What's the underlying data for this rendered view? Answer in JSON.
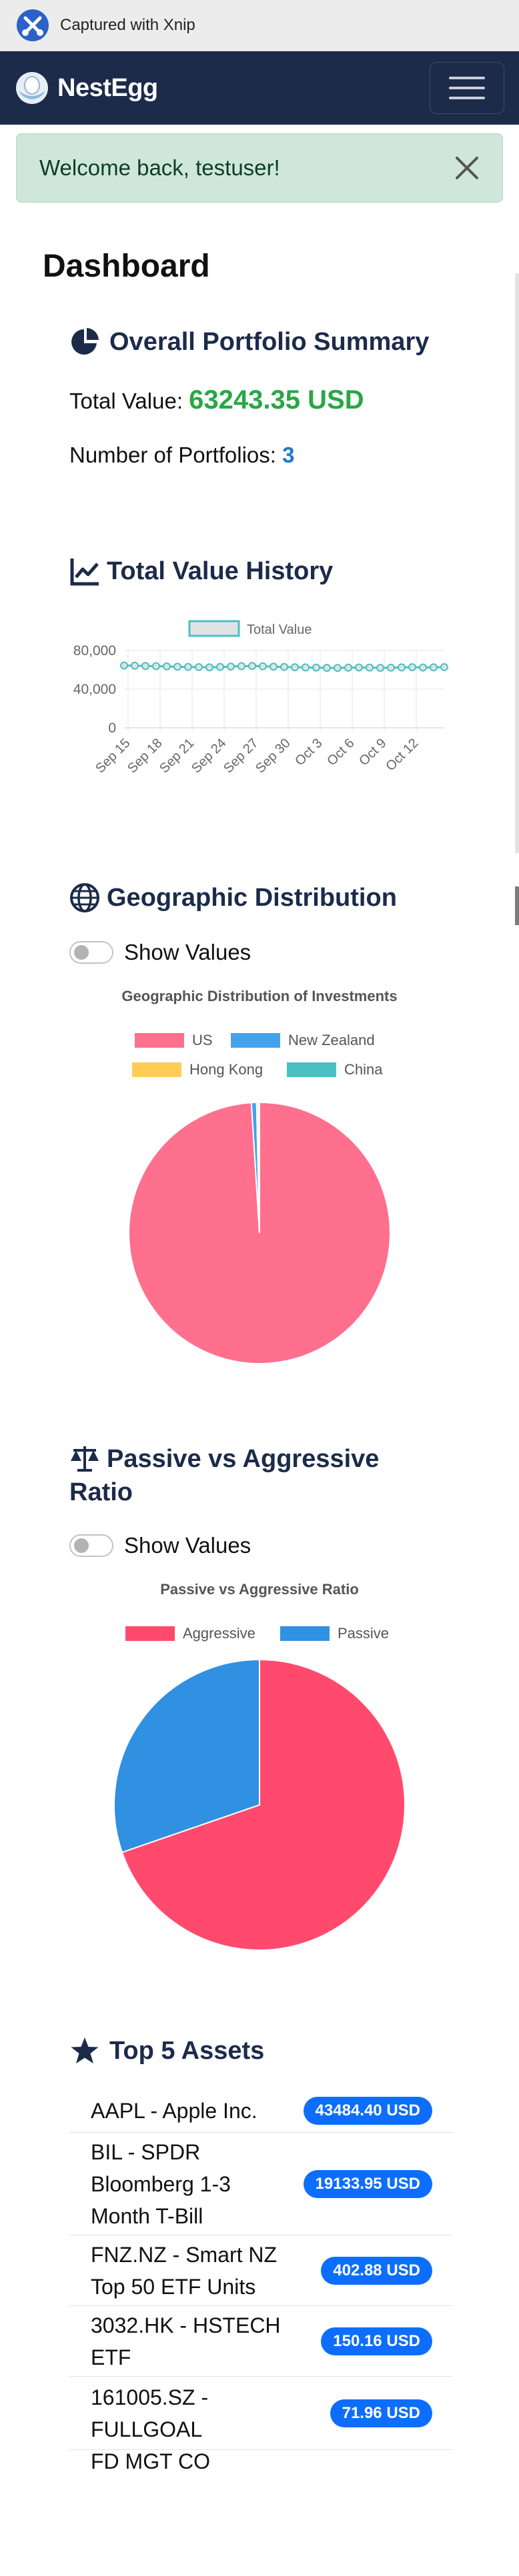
{
  "capture": {
    "text": "Captured with Xnip"
  },
  "navbar": {
    "brand": "NestEgg",
    "menu_icon": "hamburger-icon"
  },
  "alert": {
    "message": "Welcome back, testuser!",
    "close_icon": "close-icon"
  },
  "page": {
    "title": "Dashboard"
  },
  "summary": {
    "title": "Overall Portfolio Summary",
    "icon": "pie-chart-icon",
    "total_label": "Total Value:",
    "total_value": "63243.35 USD",
    "count_label": "Number of Portfolios:",
    "count_value": "3",
    "colors": {
      "total": "#28a745",
      "count": "#1e78c8"
    }
  },
  "history": {
    "title": "Total Value History",
    "icon": "line-chart-icon"
  },
  "geo": {
    "title": "Geographic Distribution",
    "icon": "globe-icon",
    "toggle_label": "Show Values"
  },
  "ratio": {
    "title_line1": "Passive vs Aggressive",
    "title_line2": "Ratio",
    "icon": "balance-scale-icon",
    "toggle_label": "Show Values"
  },
  "top_assets": {
    "title": "Top 5 Assets",
    "icon": "star-icon",
    "items": [
      {
        "name_lines": [
          "AAPL - Apple Inc."
        ],
        "value": "43484.40 USD"
      },
      {
        "name_lines": [
          "BIL - SPDR",
          "Bloomberg 1-3",
          "Month T-Bill"
        ],
        "value": "19133.95 USD"
      },
      {
        "name_lines": [
          "FNZ.NZ - Smart NZ",
          "Top 50 ETF Units"
        ],
        "value": "402.88 USD"
      },
      {
        "name_lines": [
          "3032.HK - HSTECH",
          "ETF"
        ],
        "value": "150.16 USD"
      },
      {
        "name_lines": [
          "161005.SZ - FULLGOAL",
          "FD MGT CO"
        ],
        "value": "71.96 USD"
      }
    ]
  },
  "chart_data": [
    {
      "type": "line",
      "legend": [
        "Total Value"
      ],
      "x_tick_labels": [
        "Sep 15",
        "Sep 18",
        "Sep 21",
        "Sep 24",
        "Sep 27",
        "Sep 30",
        "Oct 3",
        "Oct 6",
        "Oct 9",
        "Oct 12"
      ],
      "y_tick_labels": [
        "80,000",
        "40,000",
        "0"
      ],
      "ylim": [
        0,
        80000
      ],
      "series": [
        {
          "name": "Total Value",
          "color": "#4bc0c0",
          "values": [
            64500,
            64300,
            64000,
            63800,
            63500,
            63200,
            63000,
            62800,
            62600,
            63000,
            63400,
            63800,
            64000,
            63600,
            63300,
            63000,
            62700,
            62500,
            62300,
            62100,
            62000,
            62200,
            62400,
            62300,
            62100,
            62200,
            62500,
            62700,
            62400,
            62600,
            62800
          ]
        }
      ],
      "grid": true,
      "legend_position": "top"
    },
    {
      "type": "pie",
      "title": "Geographic Distribution of Investments",
      "labels": [
        "US",
        "New Zealand",
        "Hong Kong",
        "China"
      ],
      "values": [
        98.95,
        0.64,
        0.24,
        0.11
      ],
      "colors": [
        "#ff6f8e",
        "#44a2eb",
        "#ffcd56",
        "#4bc0c0"
      ],
      "legend_position": "top"
    },
    {
      "type": "pie",
      "title": "Passive vs Aggressive Ratio",
      "labels": [
        "Aggressive",
        "Passive"
      ],
      "values": [
        69.7,
        30.3
      ],
      "colors": [
        "#ff4a6e",
        "#3090e2"
      ],
      "legend_position": "top"
    }
  ]
}
